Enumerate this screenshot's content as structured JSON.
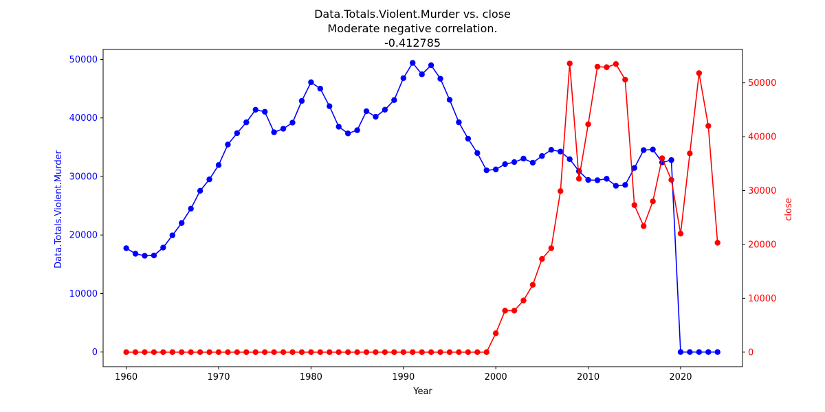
{
  "chart_data": {
    "type": "line",
    "title": [
      "Data.Totals.Violent.Murder vs. close",
      "Moderate negative correlation.",
      "-0.412785"
    ],
    "xlabel": "Year",
    "ylabel_left": "Data.Totals.Violent.Murder",
    "ylabel_right": "close",
    "xlim": [
      1957.5,
      2026.7
    ],
    "ylim_left": [
      -2500,
      51700
    ],
    "ylim_right": [
      -2700,
      56200
    ],
    "xticks": [
      1960,
      1970,
      1980,
      1990,
      2000,
      2010,
      2020
    ],
    "yticks_left": [
      0,
      10000,
      20000,
      30000,
      40000,
      50000
    ],
    "yticks_right": [
      0,
      10000,
      20000,
      30000,
      40000,
      50000
    ],
    "grid": false,
    "x": [
      1960,
      1961,
      1962,
      1963,
      1964,
      1965,
      1966,
      1967,
      1968,
      1969,
      1970,
      1971,
      1972,
      1973,
      1974,
      1975,
      1976,
      1977,
      1978,
      1979,
      1980,
      1981,
      1982,
      1983,
      1984,
      1985,
      1986,
      1987,
      1988,
      1989,
      1990,
      1991,
      1992,
      1993,
      1994,
      1995,
      1996,
      1997,
      1998,
      1999,
      2000,
      2001,
      2002,
      2003,
      2004,
      2005,
      2006,
      2007,
      2008,
      2009,
      2010,
      2011,
      2012,
      2013,
      2014,
      2015,
      2016,
      2017,
      2018,
      2019,
      2020,
      2021,
      2022,
      2023,
      2024
    ],
    "series": [
      {
        "name": "Data.Totals.Violent.Murder",
        "axis": "left",
        "color": "#0000ff",
        "values": [
          17750,
          16800,
          16450,
          16500,
          17850,
          19950,
          22050,
          24500,
          27550,
          29500,
          31950,
          35450,
          37400,
          39250,
          41400,
          41050,
          37550,
          38150,
          39200,
          42900,
          46100,
          45000,
          42000,
          38500,
          37350,
          37900,
          41150,
          40200,
          41400,
          43050,
          46800,
          49400,
          47450,
          49000,
          46700,
          43100,
          39250,
          36450,
          34000,
          31050,
          31200,
          32100,
          32450,
          33050,
          32350,
          33500,
          34550,
          34250,
          32950,
          30900,
          29400,
          29350,
          29600,
          28400,
          28550,
          31450,
          34500,
          34600,
          32400,
          32800,
          0,
          0,
          0,
          0,
          0
        ]
      },
      {
        "name": "close",
        "axis": "right",
        "color": "#ff0000",
        "values": [
          0,
          0,
          0,
          0,
          0,
          0,
          0,
          0,
          0,
          0,
          0,
          0,
          0,
          0,
          0,
          0,
          0,
          0,
          0,
          0,
          0,
          0,
          0,
          0,
          0,
          0,
          0,
          0,
          0,
          0,
          0,
          0,
          0,
          0,
          0,
          0,
          0,
          0,
          0,
          0,
          3500,
          7700,
          7700,
          9600,
          12500,
          17300,
          19300,
          29900,
          53600,
          32200,
          42300,
          53000,
          52900,
          53500,
          50600,
          27300,
          23400,
          28000,
          36000,
          32000,
          22000,
          36900,
          51800,
          42000,
          20300
        ]
      }
    ]
  }
}
